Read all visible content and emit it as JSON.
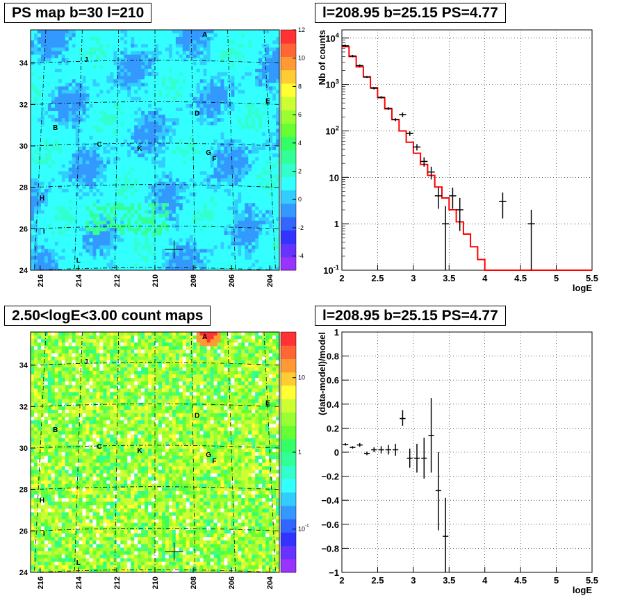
{
  "chart_data": [
    {
      "type": "heatmap",
      "title": "PS map b=30 l=210",
      "x_ticks": [
        "216",
        "214",
        "212",
        "210",
        "208",
        "206",
        "204"
      ],
      "y_ticks": [
        "24",
        "26",
        "28",
        "30",
        "32",
        "34"
      ],
      "xlim": [
        216.5,
        203.5
      ],
      "ylim": [
        24,
        35.6
      ],
      "colorbar_ticks": [
        "12",
        "10",
        "8",
        "6",
        "4",
        "2",
        "0",
        "-2",
        "-4"
      ],
      "colorbar_range": [
        -5,
        12
      ],
      "source_labels": [
        {
          "name": "A",
          "l": 207.4,
          "b": 35.4
        },
        {
          "name": "J",
          "l": 213.6,
          "b": 34.2
        },
        {
          "name": "E",
          "l": 204.1,
          "b": 32.2
        },
        {
          "name": "D",
          "l": 207.8,
          "b": 31.6
        },
        {
          "name": "B",
          "l": 215.2,
          "b": 30.9
        },
        {
          "name": "C",
          "l": 212.9,
          "b": 30.1
        },
        {
          "name": "K",
          "l": 210.8,
          "b": 29.9
        },
        {
          "name": "G",
          "l": 207.2,
          "b": 29.7
        },
        {
          "name": "F",
          "l": 206.9,
          "b": 29.4
        },
        {
          "name": "H",
          "l": 215.9,
          "b": 27.5
        },
        {
          "name": "I",
          "l": 215.8,
          "b": 25.9
        },
        {
          "name": "L",
          "l": 214.0,
          "b": 24.5
        }
      ],
      "marker": {
        "l": 209.0,
        "b": 25.0
      },
      "color_level": "mostly cyan/light blue with darker blue patches"
    },
    {
      "type": "line",
      "title": "l=208.95 b=25.15 PS=4.77",
      "xlabel": "logE",
      "ylabel": "Nb of counts",
      "xlim": [
        2,
        5.5
      ],
      "ylim": [
        0.1,
        15000
      ],
      "yscale": "log",
      "x_ticks": [
        "2",
        "2.5",
        "3",
        "3.5",
        "4",
        "4.5",
        "5",
        "5.5"
      ],
      "y_ticks": [
        "10^{-1}",
        "1",
        "10",
        "10^{2}",
        "10^{3}",
        "10^{4}"
      ],
      "grid": true,
      "model_steps": {
        "edges": [
          2.0,
          2.1,
          2.2,
          2.3,
          2.4,
          2.5,
          2.6,
          2.7,
          2.8,
          2.9,
          3.0,
          3.1,
          3.2,
          3.3,
          3.4,
          3.5,
          3.6,
          3.7,
          3.8,
          3.9,
          4.0,
          5.5
        ],
        "values": [
          6500,
          4000,
          2400,
          1450,
          850,
          520,
          300,
          175,
          100,
          57,
          33,
          19,
          11,
          6.2,
          3.6,
          2.0,
          1.1,
          0.6,
          0.32,
          0.17,
          0.1
        ]
      },
      "data_points": [
        {
          "x": 2.05,
          "y": 6800,
          "lo": 6400,
          "hi": 7200
        },
        {
          "x": 2.15,
          "y": 4100,
          "lo": 3850,
          "hi": 4350
        },
        {
          "x": 2.25,
          "y": 2550,
          "lo": 2400,
          "hi": 2700
        },
        {
          "x": 2.35,
          "y": 1450,
          "lo": 1380,
          "hi": 1520
        },
        {
          "x": 2.45,
          "y": 830,
          "lo": 780,
          "hi": 880
        },
        {
          "x": 2.55,
          "y": 530,
          "lo": 500,
          "hi": 560
        },
        {
          "x": 2.65,
          "y": 305,
          "lo": 285,
          "hi": 325
        },
        {
          "x": 2.75,
          "y": 175,
          "lo": 162,
          "hi": 188
        },
        {
          "x": 2.85,
          "y": 225,
          "lo": 200,
          "hi": 250
        },
        {
          "x": 2.95,
          "y": 88,
          "lo": 78,
          "hi": 98
        },
        {
          "x": 3.05,
          "y": 45,
          "lo": 38,
          "hi": 52
        },
        {
          "x": 3.15,
          "y": 22,
          "lo": 17,
          "hi": 27
        },
        {
          "x": 3.25,
          "y": 13,
          "lo": 9,
          "hi": 17
        },
        {
          "x": 3.35,
          "y": 4,
          "lo": 2.1,
          "hi": 6
        },
        {
          "x": 3.45,
          "y": 1,
          "lo": 0.1,
          "hi": 2.4
        },
        {
          "x": 3.55,
          "y": 4,
          "lo": 2.1,
          "hi": 6
        },
        {
          "x": 3.65,
          "y": 2,
          "lo": 0.7,
          "hi": 3.6
        },
        {
          "x": 4.25,
          "y": 3,
          "lo": 1.3,
          "hi": 4.7
        },
        {
          "x": 4.65,
          "y": 1,
          "lo": 0.1,
          "hi": 2.0
        }
      ]
    },
    {
      "type": "heatmap",
      "title": "2.50<logE<3.00 count maps",
      "x_ticks": [
        "216",
        "214",
        "212",
        "210",
        "208",
        "206",
        "204"
      ],
      "y_ticks": [
        "24",
        "26",
        "28",
        "30",
        "32",
        "34"
      ],
      "xlim": [
        216.5,
        203.5
      ],
      "ylim": [
        24,
        35.6
      ],
      "colorbar_ticks": [
        "10",
        "1",
        "10^{-1}"
      ],
      "colorbar_scale": "log",
      "source_labels": [
        {
          "name": "A",
          "l": 207.4,
          "b": 35.4
        },
        {
          "name": "J",
          "l": 213.6,
          "b": 34.2
        },
        {
          "name": "E",
          "l": 204.1,
          "b": 32.2
        },
        {
          "name": "D",
          "l": 207.8,
          "b": 31.6
        },
        {
          "name": "B",
          "l": 215.2,
          "b": 30.9
        },
        {
          "name": "C",
          "l": 212.9,
          "b": 30.1
        },
        {
          "name": "K",
          "l": 210.8,
          "b": 29.9
        },
        {
          "name": "G",
          "l": 207.2,
          "b": 29.7
        },
        {
          "name": "F",
          "l": 206.9,
          "b": 29.4
        },
        {
          "name": "H",
          "l": 215.9,
          "b": 27.5
        },
        {
          "name": "I",
          "l": 215.8,
          "b": 25.9
        },
        {
          "name": "L",
          "l": 214.0,
          "b": 24.5
        }
      ],
      "marker": {
        "l": 209.0,
        "b": 25.0
      },
      "color_level": "mostly green/yellow with scattered white pixels, red hotspot at A"
    },
    {
      "type": "scatter",
      "title": "l=208.95 b=25.15 PS=4.77",
      "xlabel": "logE",
      "ylabel": "(data-model)/model",
      "xlim": [
        2,
        5.5
      ],
      "ylim": [
        -1,
        1
      ],
      "x_ticks": [
        "2",
        "2.5",
        "3",
        "3.5",
        "4",
        "4.5",
        "5",
        "5.5"
      ],
      "y_ticks": [
        "1",
        "0.8",
        "0.6",
        "0.4",
        "0.2",
        "0",
        "−0.2",
        "−0.4",
        "−0.6",
        "−0.8",
        "−1"
      ],
      "grid": true,
      "data_points": [
        {
          "x": 2.05,
          "y": 0.065,
          "lo": 0.055,
          "hi": 0.075
        },
        {
          "x": 2.15,
          "y": 0.04,
          "lo": 0.03,
          "hi": 0.05
        },
        {
          "x": 2.25,
          "y": 0.06,
          "lo": 0.045,
          "hi": 0.075
        },
        {
          "x": 2.35,
          "y": -0.01,
          "lo": -0.025,
          "hi": 0.005
        },
        {
          "x": 2.45,
          "y": 0.02,
          "lo": 0.0,
          "hi": 0.04
        },
        {
          "x": 2.55,
          "y": 0.02,
          "lo": -0.01,
          "hi": 0.05
        },
        {
          "x": 2.65,
          "y": 0.02,
          "lo": -0.02,
          "hi": 0.06
        },
        {
          "x": 2.75,
          "y": 0.02,
          "lo": -0.03,
          "hi": 0.07
        },
        {
          "x": 2.85,
          "y": 0.28,
          "lo": 0.22,
          "hi": 0.35
        },
        {
          "x": 2.95,
          "y": -0.05,
          "lo": -0.13,
          "hi": 0.03
        },
        {
          "x": 3.05,
          "y": -0.05,
          "lo": -0.17,
          "hi": 0.07
        },
        {
          "x": 3.15,
          "y": -0.05,
          "lo": -0.22,
          "hi": 0.12
        },
        {
          "x": 3.25,
          "y": 0.14,
          "lo": -0.17,
          "hi": 0.45
        },
        {
          "x": 3.35,
          "y": -0.32,
          "lo": -0.65,
          "hi": 0.0
        },
        {
          "x": 3.45,
          "y": -0.7,
          "lo": -1.0,
          "hi": -0.38
        }
      ]
    }
  ],
  "panels": {
    "top_left_title": "PS map b=30 l=210",
    "top_right_title": "l=208.95 b=25.15 PS=4.77",
    "bottom_left_title": "2.50<logE<3.00 count maps",
    "bottom_right_title": "l=208.95 b=25.15 PS=4.77",
    "spectrum_xlabel": "logE",
    "spectrum_ylabel": "Nb of counts",
    "residual_xlabel": "logE",
    "residual_ylabel": "(data-model)/model"
  },
  "colors": {
    "model_line": "#ff0000",
    "data_points": "#000000",
    "grid": "#000000"
  }
}
